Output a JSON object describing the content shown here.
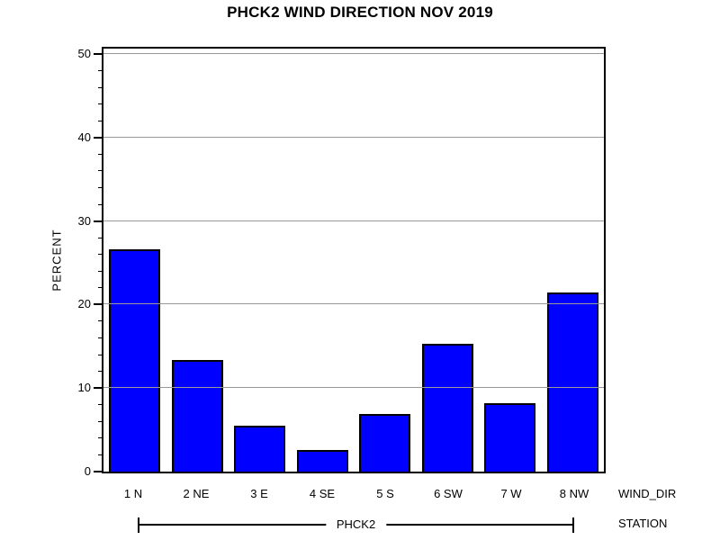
{
  "chart_data": {
    "type": "bar",
    "title": "PHCK2 WIND DIRECTION NOV 2019",
    "categories": [
      "1 N",
      "2 NE",
      "3 E",
      "4 SE",
      "5 S",
      "6 SW",
      "7 W",
      "8 NW"
    ],
    "values": [
      26.6,
      13.4,
      5.5,
      2.6,
      6.9,
      15.3,
      8.2,
      21.4
    ],
    "xlabel": "WIND_DIR",
    "ylabel": "PERCENT",
    "group_axis_label": "STATION",
    "group_value": "PHCK2",
    "ylim": [
      0,
      50
    ],
    "y_major_ticks": [
      0,
      10,
      20,
      30,
      40,
      50
    ],
    "y_minor_tick_interval": 2,
    "grid": "horizontal gridlines at major ticks, drawn over bars",
    "legend": "none",
    "bar_color": "#0000ff",
    "bar_border_color": "#000000",
    "gridline_color": "#999999"
  }
}
